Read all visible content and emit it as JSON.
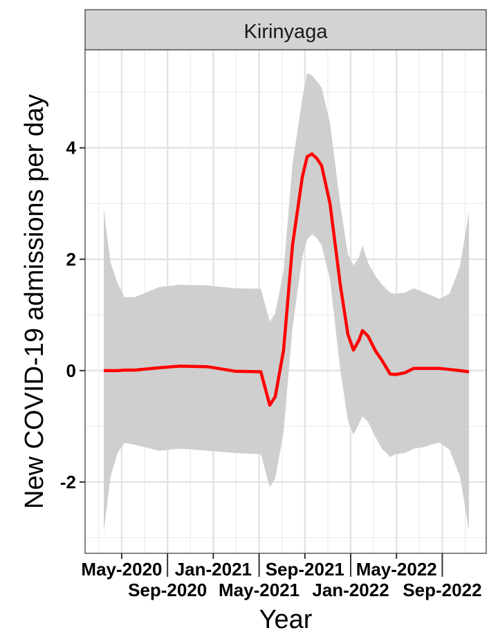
{
  "chart_data": {
    "type": "line",
    "facet_label": "Kirinyaga",
    "xlabel": "Year",
    "ylabel": "New COVID-19 admissions per day",
    "x_units": "months since May-2020",
    "xlim": [
      -3.2,
      31.84
    ],
    "ylim": [
      -3.28,
      5.76
    ],
    "x_ticks": [
      {
        "value": 0,
        "label": "May-2020"
      },
      {
        "value": 4,
        "label": "Sep-2020"
      },
      {
        "value": 8,
        "label": "Jan-2021"
      },
      {
        "value": 12,
        "label": "May-2021"
      },
      {
        "value": 16,
        "label": "Sep-2021"
      },
      {
        "value": 20,
        "label": "Jan-2022"
      },
      {
        "value": 24,
        "label": "May-2022"
      },
      {
        "value": 28,
        "label": "Sep-2022"
      }
    ],
    "y_ticks": [
      {
        "value": -2,
        "label": "-2"
      },
      {
        "value": 0,
        "label": "0"
      },
      {
        "value": 2,
        "label": "2"
      },
      {
        "value": 4,
        "label": "4"
      }
    ],
    "grid": true,
    "line_color": "#ff0000",
    "band_color": "#cccccc",
    "x": [
      -1.57,
      -0.97,
      -0.36,
      0.24,
      1.15,
      3.26,
      5.08,
      7.49,
      9.91,
      12.15,
      12.93,
      13.41,
      14.14,
      14.92,
      15.77,
      16.19,
      16.62,
      17.04,
      17.46,
      18.19,
      19.09,
      19.76,
      20.24,
      20.73,
      21.03,
      21.51,
      22.18,
      22.72,
      23.44,
      23.93,
      24.71,
      25.5,
      26.22,
      27.73,
      28.64,
      29.55,
      30.33
    ],
    "series": [
      {
        "name": "mean",
        "values": [
          0,
          0,
          0,
          0.01,
          0.01,
          0.05,
          0.08,
          0.07,
          -0.01,
          -0.02,
          -0.62,
          -0.47,
          0.37,
          2.25,
          3.47,
          3.84,
          3.89,
          3.81,
          3.68,
          3.0,
          1.54,
          0.65,
          0.37,
          0.55,
          0.72,
          0.62,
          0.35,
          0.19,
          -0.06,
          -0.07,
          -0.04,
          0.04,
          0.04,
          0.04,
          0.02,
          0.0,
          -0.02
        ]
      },
      {
        "name": "upper",
        "values": [
          2.9,
          1.94,
          1.57,
          1.32,
          1.32,
          1.5,
          1.54,
          1.53,
          1.48,
          1.47,
          0.88,
          1.03,
          1.79,
          3.71,
          4.88,
          5.34,
          5.3,
          5.2,
          5.08,
          4.45,
          2.98,
          2.09,
          1.89,
          2.04,
          2.25,
          1.94,
          1.69,
          1.55,
          1.4,
          1.38,
          1.4,
          1.48,
          1.42,
          1.29,
          1.38,
          1.88,
          2.85
        ]
      },
      {
        "name": "lower",
        "values": [
          -2.9,
          -1.9,
          -1.48,
          -1.3,
          -1.33,
          -1.44,
          -1.4,
          -1.44,
          -1.48,
          -1.5,
          -2.09,
          -1.94,
          -1.1,
          0.77,
          2.04,
          2.35,
          2.45,
          2.38,
          2.25,
          1.64,
          0.01,
          -0.9,
          -1.15,
          -0.95,
          -0.82,
          -0.92,
          -1.2,
          -1.4,
          -1.55,
          -1.5,
          -1.48,
          -1.4,
          -1.38,
          -1.29,
          -1.42,
          -1.9,
          -2.88
        ]
      }
    ]
  }
}
